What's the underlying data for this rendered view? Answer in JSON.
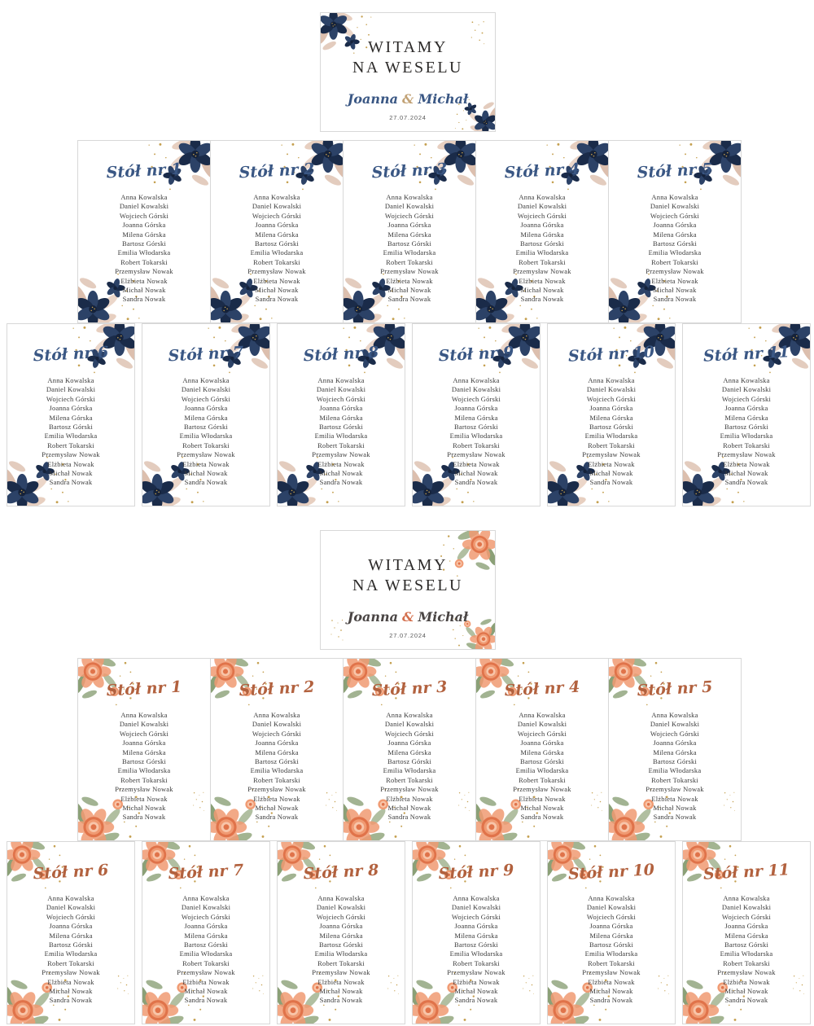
{
  "header_card": {
    "title_line1": "WITAMY",
    "title_line2": "NA WESELU",
    "bride_name": "Joanna",
    "ampersand": "&",
    "groom_name": "Michał",
    "date": "27.07.2024"
  },
  "tables_row1_labels": [
    "Stół nr 1",
    "Stół nr 2",
    "Stół nr 3",
    "Stół nr 4",
    "Stół nr 5"
  ],
  "tables_row2_labels": [
    "Stół nr 6",
    "Stół nr 7",
    "Stół nr 8",
    "Stół nr 9",
    "Stół nr 10",
    "Stół nr 11"
  ],
  "guests": [
    "Anna Kowalska",
    "Daniel Kowalski",
    "Wojciech Górski",
    "Joanna Górska",
    "Milena Górska",
    "Bartosz Górski",
    "Emilia Włodarska",
    "Robert Tokarski",
    "Przemysław Nowak",
    "Elżbieta Nowak",
    "Michał Nowak",
    "Sandra Nowak"
  ],
  "sections": [
    {
      "theme": "navy-floral",
      "table_title_color": "#3a5784",
      "couple_name_color": "#3a5784",
      "ampersand_color": "#c2a276",
      "flower_main": "#2c4267",
      "flower_dark": "#1a2b49",
      "leaf_color": "#e7cfc0",
      "leaf_color_2": "#dcbfae"
    },
    {
      "theme": "peach-floral",
      "table_title_color": "#b2613e",
      "couple_name_color": "#4a4544",
      "ampersand_color": "#d4704e",
      "flower_main": "#f09a72",
      "flower_dark": "#e0734a",
      "flower_light": "#f8c5a9",
      "leaf_color": "#a3b491",
      "leaf_color_2": "#8ba077"
    }
  ],
  "shared_colors": {
    "gold": "#c5a050",
    "heading_text": "#2d2b2a",
    "guest_text": "#3a3a3a",
    "date_text": "#5a5a5a",
    "card_border": "#d8d8d8",
    "card_background": "#ffffff"
  }
}
